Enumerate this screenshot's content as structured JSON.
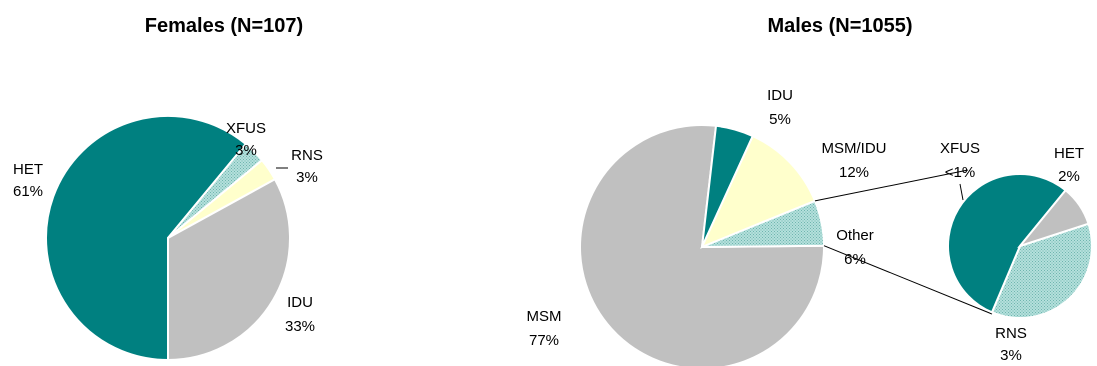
{
  "colors": {
    "teal": "#008080",
    "gray": "#C0C0C0",
    "light_yellow": "#FFFFCC",
    "light_teal_dotted": "#A8D8D4",
    "slice_border": "#ffffff",
    "connector": "#000000"
  },
  "chart_data": [
    {
      "type": "pie",
      "title": "Females (N=107)",
      "slices": [
        {
          "label": "HET",
          "value": 61,
          "value_label": "61%",
          "color": "teal"
        },
        {
          "label": "XFUS",
          "value": 3,
          "value_label": "3%",
          "color": "light_teal_dotted"
        },
        {
          "label": "RNS",
          "value": 3,
          "value_label": "3%",
          "color": "light_yellow"
        },
        {
          "label": "IDU",
          "value": 33,
          "value_label": "33%",
          "color": "gray"
        }
      ]
    },
    {
      "type": "pie",
      "title": "Males (N=1055)",
      "slices": [
        {
          "label": "MSM",
          "value": 77,
          "value_label": "77%",
          "color": "gray"
        },
        {
          "label": "IDU",
          "value": 5,
          "value_label": "5%",
          "color": "teal"
        },
        {
          "label": "MSM/IDU",
          "value": 12,
          "value_label": "12%",
          "color": "light_yellow"
        },
        {
          "label": "Other",
          "value": 6,
          "value_label": "6%",
          "color": "light_teal_dotted"
        }
      ],
      "breakout": {
        "of": "Other",
        "slices": [
          {
            "label": "HET",
            "value": 2,
            "value_label": "2%",
            "color": "light_teal_dotted"
          },
          {
            "label": "RNS",
            "value": 3,
            "value_label": "3%",
            "color": "teal"
          },
          {
            "label": "XFUS",
            "value": 0.5,
            "value_label": "<1%",
            "color": "gray"
          }
        ]
      }
    }
  ]
}
